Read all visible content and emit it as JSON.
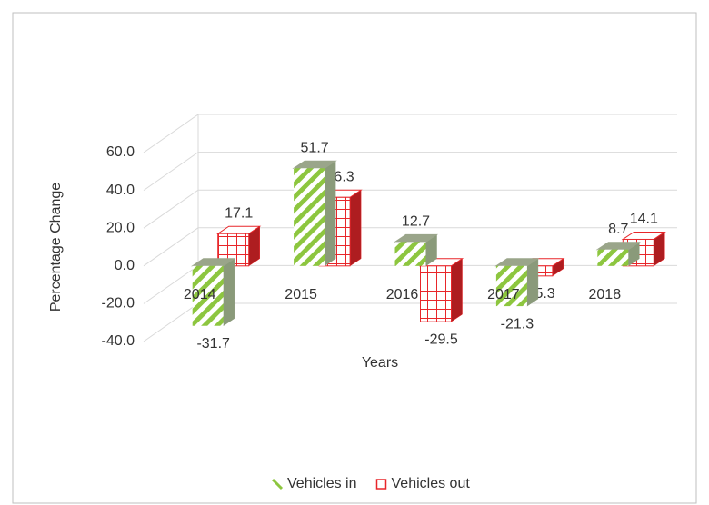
{
  "chart_data": {
    "type": "bar3d",
    "categories": [
      "2014",
      "2015",
      "2016",
      "2017",
      "2018"
    ],
    "series": [
      {
        "name": "Vehicles in",
        "color": "#8dc63f",
        "pattern": "stripes",
        "values": [
          -31.7,
          51.7,
          12.7,
          -21.3,
          8.7
        ]
      },
      {
        "name": "Vehicles out",
        "color": "#e8262a",
        "pattern": "grid",
        "values": [
          17.1,
          36.3,
          -29.5,
          -5.3,
          14.1
        ]
      }
    ],
    "y_label": "Percentage Change",
    "x_label": "Years",
    "ylim": [
      -40,
      60
    ],
    "yticks": [
      {
        "value": -40,
        "label": "-40.0"
      },
      {
        "value": -20,
        "label": "-20.0"
      },
      {
        "value": 0,
        "label": "0.0"
      },
      {
        "value": 20,
        "label": "20.0"
      },
      {
        "value": 40,
        "label": "40.0"
      },
      {
        "value": 60,
        "label": "60.0"
      }
    ],
    "grid": true,
    "legend": "bottom"
  }
}
